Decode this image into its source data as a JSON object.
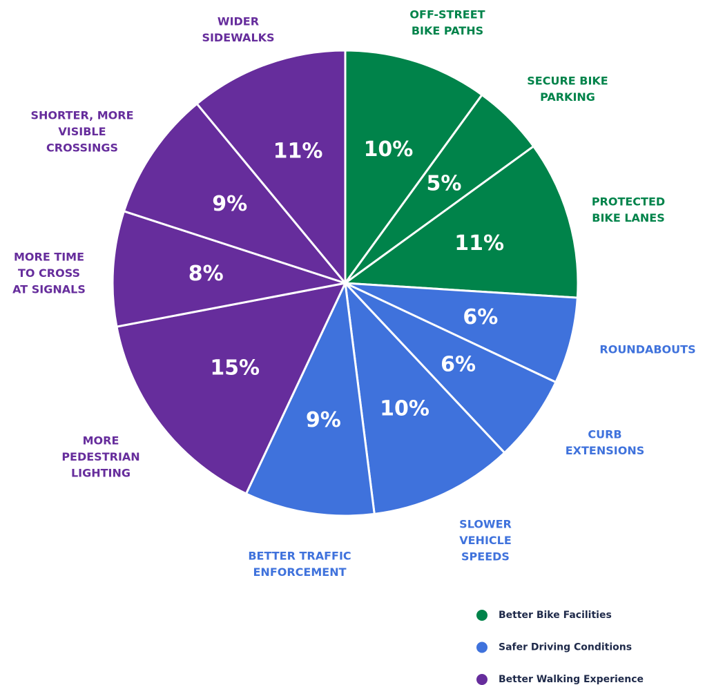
{
  "chart_data": {
    "type": "pie",
    "categories": [
      [
        "OFF-STREET",
        "BIKE PATHS"
      ],
      [
        "SECURE BIKE",
        "PARKING"
      ],
      [
        "PROTECTED",
        "BIKE LANES"
      ],
      [
        "ROUNDABOUTS"
      ],
      [
        "CURB",
        "EXTENSIONS"
      ],
      [
        "SLOWER",
        "VEHICLE",
        "SPEEDS"
      ],
      [
        "BETTER TRAFFIC",
        "ENFORCEMENT"
      ],
      [
        "MORE",
        "PEDESTRIAN",
        "LIGHTING"
      ],
      [
        "MORE TIME",
        "TO CROSS",
        "AT SIGNALS"
      ],
      [
        "SHORTER, MORE",
        "VISIBLE",
        "CROSSINGS"
      ],
      [
        "WIDER",
        "SIDEWALKS"
      ]
    ],
    "values": [
      10,
      5,
      11,
      6,
      6,
      10,
      9,
      15,
      8,
      9,
      11
    ],
    "value_labels": [
      "10%",
      "5%",
      "11%",
      "6%",
      "6%",
      "10%",
      "9%",
      "15%",
      "8%",
      "9%",
      "11%"
    ],
    "colors": [
      "#00834a",
      "#00834a",
      "#00834a",
      "#3f72dc",
      "#3f72dc",
      "#3f72dc",
      "#3f72dc",
      "#662d9c",
      "#662d9c",
      "#662d9c",
      "#662d9c"
    ],
    "legend": [
      {
        "name": "Better Bike Facilities",
        "color": "#00834a"
      },
      {
        "name": "Safer Driving Conditions",
        "color": "#3f72dc"
      },
      {
        "name": "Better Walking Experience",
        "color": "#662d9c"
      }
    ]
  }
}
